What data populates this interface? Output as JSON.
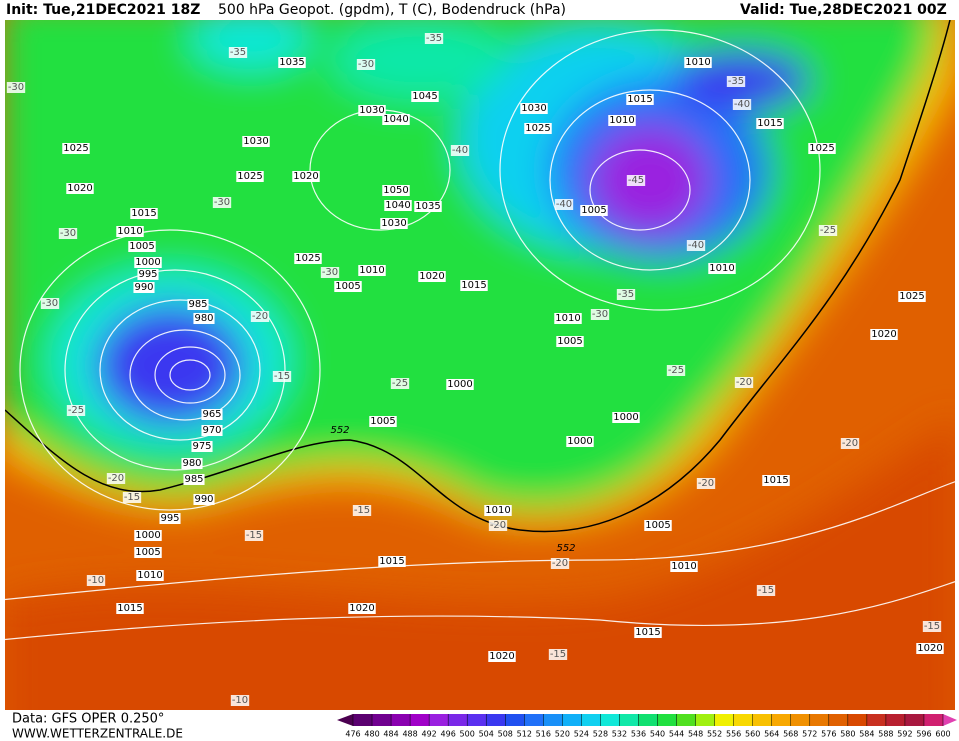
{
  "header": {
    "init": "Init: Tue,21DEC2021 18Z",
    "title": "500 hPa Geopot. (gpdm), T (C), Bodendruck (hPa)",
    "valid": "Valid: Tue,28DEC2021 00Z"
  },
  "map": {
    "pressure_labels": [
      1035,
      1030,
      1040,
      1045,
      1030,
      1025,
      1025,
      1020,
      1020,
      1015,
      1010,
      1005,
      1000,
      995,
      990,
      985,
      980,
      1050,
      1040,
      1035,
      1030,
      1025,
      1010,
      1005,
      1020,
      1015,
      1030,
      1025,
      1010,
      1015,
      1010,
      1015,
      1025,
      1005,
      1010,
      1010,
      1005,
      1025,
      1020,
      1000,
      1005,
      1000,
      1000,
      965,
      970,
      975,
      980,
      985,
      990,
      995,
      1000,
      1005,
      1010,
      1015,
      1015,
      1020,
      1015,
      1005,
      1010,
      1010,
      1015,
      1020,
      1020
    ],
    "temperature_labels": [
      -35,
      -35,
      -30,
      -30,
      -40,
      -30,
      -30,
      -30,
      -30,
      -20,
      -15,
      -25,
      -25,
      -20,
      -15,
      -15,
      -15,
      -10,
      -35,
      -40,
      -45,
      -40,
      -40,
      -35,
      -30,
      -25,
      -25,
      -20,
      -20,
      -20,
      -20,
      -20,
      -15,
      -15,
      -15,
      -10
    ],
    "contour_labels": [
      552,
      552
    ]
  },
  "colorbar": {
    "labels": [
      476,
      480,
      484,
      488,
      492,
      496,
      500,
      504,
      508,
      512,
      516,
      520,
      524,
      528,
      532,
      536,
      540,
      544,
      548,
      552,
      556,
      560,
      564,
      568,
      572,
      576,
      580,
      584,
      588,
      592,
      596,
      600
    ],
    "colors": [
      "#4b0050",
      "#5a0070",
      "#700090",
      "#8a00b0",
      "#a000c8",
      "#9a20e0",
      "#7a28e8",
      "#5a30f0",
      "#3a38f0",
      "#2050f0",
      "#2070f8",
      "#1890f8",
      "#10b0f8",
      "#10d0f0",
      "#10e8d8",
      "#10e8a8",
      "#10e070",
      "#20e040",
      "#50e020",
      "#a0f010",
      "#f0f000",
      "#f8d800",
      "#f8c000",
      "#f8a800",
      "#f09000",
      "#e87800",
      "#e06000",
      "#d84800",
      "#c83020",
      "#b82030",
      "#a81840",
      "#d02070",
      "#e040b0"
    ]
  },
  "footer": {
    "source": "Data: GFS OPER 0.250°",
    "site": "WWW.WETTERZENTRALE.DE"
  }
}
